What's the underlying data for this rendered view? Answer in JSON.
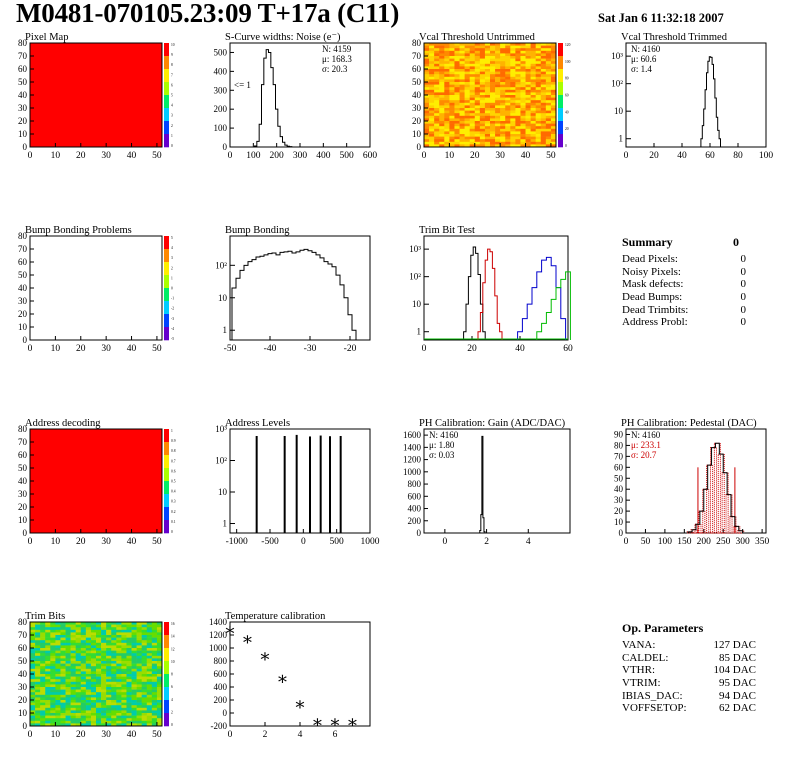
{
  "header": {
    "title": "M0481-070105.23:09 T+17a (C11)",
    "date": "Sat Jan  6 11:32:18 2007"
  },
  "chart_data": [
    {
      "id": "pixel_map",
      "type": "heatmap",
      "title": "Pixel Map",
      "xlim": [
        0,
        52
      ],
      "ylim": [
        0,
        80
      ],
      "xticks": [
        0,
        10,
        20,
        30,
        40,
        50
      ],
      "yticks": [
        0,
        10,
        20,
        30,
        40,
        50,
        60,
        70,
        80
      ],
      "fill_color": "#ff0000",
      "zticks": [
        "10",
        "9",
        "8",
        "7",
        "6",
        "5",
        "4",
        "3",
        "2",
        "1",
        "0"
      ]
    },
    {
      "id": "scurve_widths",
      "type": "line",
      "title": "S-Curve widths: Noise (e⁻)",
      "xlim": [
        0,
        600
      ],
      "ylim": [
        0,
        550
      ],
      "xticks": [
        0,
        100,
        200,
        300,
        400,
        500,
        600
      ],
      "yticks": [
        0,
        100,
        200,
        300,
        400,
        500
      ],
      "x": [
        110,
        120,
        130,
        140,
        150,
        160,
        170,
        180,
        190,
        200,
        210,
        220,
        230,
        240,
        250,
        260,
        270
      ],
      "y": [
        5,
        30,
        120,
        330,
        470,
        515,
        500,
        420,
        330,
        200,
        110,
        55,
        25,
        10,
        4,
        2,
        0
      ],
      "stats": [
        "N: 4159",
        "μ: 168.3",
        "σ: 20.3"
      ],
      "annotation": "<= 1"
    },
    {
      "id": "vcal_untrimmed",
      "type": "heatmap",
      "title": "Vcal Threshold Untrimmed",
      "xlim": [
        0,
        52
      ],
      "ylim": [
        0,
        80
      ],
      "xticks": [
        0,
        10,
        20,
        30,
        40,
        50
      ],
      "yticks": [
        0,
        10,
        20,
        30,
        40,
        50,
        60,
        70,
        80
      ],
      "palette": [
        "#ff8a00",
        "#ffb300",
        "#ffd400",
        "#ffee00",
        "#ff6a00"
      ],
      "zticks": [
        "120",
        "100",
        "80",
        "60",
        "40",
        "20",
        "0"
      ]
    },
    {
      "id": "vcal_trimmed",
      "type": "line",
      "title": "Vcal Threshold Trimmed",
      "log_y": true,
      "xlim": [
        0,
        100
      ],
      "ylim": [
        0.5,
        3000
      ],
      "xticks": [
        0,
        20,
        40,
        60,
        80,
        100
      ],
      "ytick_labels": [
        "1",
        "10",
        "10²",
        "10³"
      ],
      "x": [
        54,
        55,
        56,
        57,
        58,
        59,
        60,
        61,
        62,
        63,
        64,
        65,
        66,
        67
      ],
      "y": [
        1,
        3,
        12,
        60,
        250,
        650,
        950,
        900,
        500,
        150,
        30,
        6,
        2,
        1
      ],
      "stats": [
        "N: 4160",
        "μ: 60.6",
        "σ: 1.4"
      ]
    },
    {
      "id": "bump_problems",
      "type": "heatmap",
      "title": "Bump Bonding Problems",
      "xlim": [
        0,
        52
      ],
      "ylim": [
        0,
        80
      ],
      "xticks": [
        0,
        10,
        20,
        30,
        40,
        50
      ],
      "yticks": [
        0,
        10,
        20,
        30,
        40,
        50,
        60,
        70,
        80
      ],
      "fill_color": "#ffffff",
      "zticks": [
        "5",
        "4",
        "3",
        "2",
        "1",
        "0",
        "-1",
        "-2",
        "-3",
        "-4",
        "-5"
      ]
    },
    {
      "id": "bump_bonding",
      "type": "line",
      "title": "Bump Bonding",
      "log_y": true,
      "xlim": [
        -50,
        -15
      ],
      "ylim": [
        0.5,
        800
      ],
      "xticks": [
        -50,
        -40,
        -30,
        -20
      ],
      "ytick_labels": [
        "1",
        "10",
        "10²"
      ],
      "x": [
        -49,
        -48,
        -47,
        -46,
        -45,
        -44,
        -43,
        -42,
        -41,
        -40,
        -39,
        -38,
        -37,
        -36,
        -35,
        -34,
        -33,
        -32,
        -31,
        -30,
        -29,
        -28,
        -27,
        -26,
        -25,
        -24,
        -23,
        -22,
        -21,
        -20,
        -19
      ],
      "y": [
        20,
        40,
        70,
        100,
        130,
        150,
        180,
        190,
        210,
        230,
        240,
        210,
        250,
        260,
        270,
        240,
        260,
        290,
        310,
        280,
        250,
        210,
        170,
        130,
        110,
        90,
        50,
        25,
        10,
        3,
        1
      ]
    },
    {
      "id": "trim_bit_test",
      "type": "line",
      "title": "Trim Bit Test",
      "log_y": true,
      "xlim": [
        0,
        60
      ],
      "ylim": [
        0.5,
        3000
      ],
      "xticks": [
        0,
        20,
        40,
        60
      ],
      "ytick_labels": [
        "1",
        "10",
        "10²",
        "10³"
      ],
      "series": [
        {
          "color": "#000000",
          "x": [
            17,
            18,
            19,
            20,
            21,
            22,
            23,
            24,
            25
          ],
          "y": [
            1,
            10,
            100,
            600,
            1200,
            700,
            120,
            10,
            1
          ]
        },
        {
          "color": "#cc0000",
          "x": [
            23,
            24,
            25,
            26,
            27,
            28,
            29,
            30,
            31,
            32
          ],
          "y": [
            1,
            5,
            60,
            400,
            1000,
            800,
            200,
            20,
            2,
            1
          ]
        },
        {
          "color": "#0000cc",
          "x": [
            40,
            42,
            44,
            46,
            48,
            50,
            52,
            54,
            56,
            58
          ],
          "y": [
            1,
            3,
            10,
            40,
            150,
            400,
            500,
            250,
            40,
            3
          ]
        },
        {
          "color": "#00bb00",
          "x": [
            48,
            50,
            52,
            54,
            56,
            58,
            60
          ],
          "y": [
            1,
            2,
            5,
            15,
            40,
            80,
            150
          ]
        }
      ]
    },
    {
      "id": "address_decoding",
      "type": "heatmap",
      "title": "Address decoding",
      "xlim": [
        0,
        52
      ],
      "ylim": [
        0,
        80
      ],
      "xticks": [
        0,
        10,
        20,
        30,
        40,
        50
      ],
      "yticks": [
        0,
        10,
        20,
        30,
        40,
        50,
        60,
        70,
        80
      ],
      "fill_color": "#ff0000",
      "zticks": [
        "1",
        "0.9",
        "0.8",
        "0.7",
        "0.6",
        "0.5",
        "0.4",
        "0.3",
        "0.2",
        "0.1",
        "0"
      ]
    },
    {
      "id": "address_levels",
      "type": "bar",
      "title": "Address Levels",
      "log_y": true,
      "xlim": [
        -1100,
        1000
      ],
      "ylim": [
        0.5,
        1000
      ],
      "xticks": [
        -1000,
        -500,
        0,
        500,
        1000
      ],
      "ytick_labels": [
        "1",
        "10",
        "10²",
        "10³"
      ],
      "x": [
        -700,
        -280,
        -100,
        100,
        260,
        400,
        560
      ],
      "y": [
        600,
        600,
        650,
        580,
        620,
        590,
        600
      ]
    },
    {
      "id": "ph_gain",
      "type": "line",
      "title": "PH Calibration: Gain (ADC/DAC)",
      "xlim": [
        -1,
        6
      ],
      "ylim": [
        0,
        1700
      ],
      "xticks": [
        0,
        2,
        4
      ],
      "yticks": [
        0,
        200,
        400,
        600,
        800,
        1000,
        1200,
        1400,
        1600
      ],
      "x": [
        1.65,
        1.7,
        1.75,
        1.8,
        1.85,
        1.9,
        1.95
      ],
      "y": [
        0,
        40,
        300,
        1580,
        250,
        20,
        0
      ],
      "stats": [
        "N: 4160",
        "μ: 1.80",
        "σ: 0.03"
      ]
    },
    {
      "id": "ph_pedestal",
      "type": "line",
      "title": "PH Calibration: Pedestal (DAC)",
      "xlim": [
        0,
        360
      ],
      "ylim": [
        0,
        95
      ],
      "xticks": [
        0,
        50,
        100,
        150,
        200,
        250,
        300,
        350
      ],
      "yticks": [
        0,
        10,
        20,
        30,
        40,
        50,
        60,
        70,
        80,
        90
      ],
      "x": [
        165,
        175,
        185,
        195,
        205,
        215,
        225,
        235,
        245,
        255,
        265,
        275,
        285,
        295,
        305
      ],
      "y": [
        1,
        3,
        8,
        20,
        40,
        62,
        78,
        82,
        72,
        55,
        35,
        15,
        6,
        2,
        0
      ],
      "markers": [
        185,
        280
      ],
      "stats": [
        "N: 4160",
        "μ: 233.1",
        "σ: 20.7"
      ]
    },
    {
      "id": "trim_bits",
      "type": "heatmap",
      "title": "Trim Bits",
      "xlim": [
        0,
        52
      ],
      "ylim": [
        0,
        80
      ],
      "xticks": [
        0,
        10,
        20,
        30,
        40,
        50
      ],
      "yticks": [
        0,
        10,
        20,
        30,
        40,
        50,
        60,
        70,
        80
      ],
      "palette": [
        "#33dd33",
        "#66dd00",
        "#99dd00",
        "#22cc66",
        "#00ccaa",
        "#bbdd00"
      ],
      "zticks": [
        "16",
        "14",
        "12",
        "10",
        "8",
        "6",
        "4",
        "2",
        "0"
      ]
    },
    {
      "id": "temperature_calibration",
      "type": "scatter",
      "title": "Temperature calibration",
      "xlim": [
        0,
        8
      ],
      "ylim": [
        -200,
        1400
      ],
      "xticks": [
        0,
        2,
        4,
        6
      ],
      "yticks": [
        -200,
        0,
        200,
        400,
        600,
        800,
        1000,
        1200,
        1400
      ],
      "x": [
        0,
        1,
        2,
        3,
        4,
        5,
        6,
        7
      ],
      "y": [
        1280,
        1140,
        880,
        530,
        140,
        -140,
        -140,
        -140
      ]
    }
  ],
  "summary": {
    "title": "Summary",
    "total": "0",
    "rows": [
      {
        "label": "Dead Pixels:",
        "value": "0"
      },
      {
        "label": "Noisy Pixels:",
        "value": "0"
      },
      {
        "label": "Mask defects:",
        "value": "0"
      },
      {
        "label": "Dead Bumps:",
        "value": "0"
      },
      {
        "label": "Dead Trimbits:",
        "value": "0"
      },
      {
        "label": "Address Probl:",
        "value": "0"
      }
    ]
  },
  "op_params": {
    "title": "Op. Parameters",
    "rows": [
      {
        "label": "VANA:",
        "value": "127 DAC"
      },
      {
        "label": "CALDEL:",
        "value": "85 DAC"
      },
      {
        "label": "VTHR:",
        "value": "104 DAC"
      },
      {
        "label": "VTRIM:",
        "value": "95 DAC"
      },
      {
        "label": "IBIAS_DAC:",
        "value": "94 DAC"
      },
      {
        "label": "VOFFSETOP:",
        "value": "62 DAC"
      }
    ]
  }
}
